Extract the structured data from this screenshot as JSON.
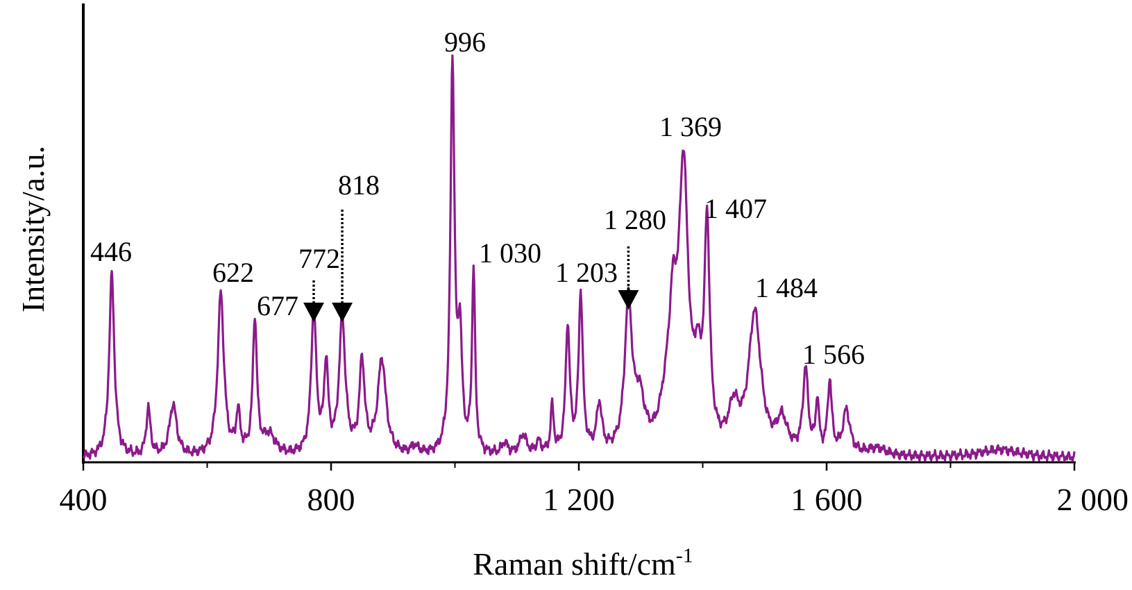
{
  "chart_data": {
    "type": "line",
    "title": "",
    "xlabel": "Raman shift/cm",
    "xlabel_superscript": "-1",
    "ylabel": "Intensity/a.u.",
    "xlim": [
      400,
      2000
    ],
    "ylim": [
      0,
      100
    ],
    "x_ticks": [
      400,
      800,
      1200,
      1600,
      2000
    ],
    "x_tick_labels": [
      "400",
      "800",
      "1 200",
      "1 600",
      "2 000"
    ],
    "y_ticks_shown": false,
    "grid": false,
    "legend": "none",
    "series_color": "#8B1A8B",
    "baseline": 0.7,
    "peaks": [
      {
        "x": 446,
        "y": 46,
        "w": 5
      },
      {
        "x": 505,
        "y": 12,
        "w": 4
      },
      {
        "x": 545,
        "y": 13,
        "w": 7
      },
      {
        "x": 622,
        "y": 41,
        "w": 6
      },
      {
        "x": 650,
        "y": 10,
        "w": 4
      },
      {
        "x": 677,
        "y": 34,
        "w": 4
      },
      {
        "x": 700,
        "y": 5,
        "w": 12
      },
      {
        "x": 772,
        "y": 36,
        "w": 5
      },
      {
        "x": 792,
        "y": 22,
        "w": 4
      },
      {
        "x": 818,
        "y": 34,
        "w": 6
      },
      {
        "x": 850,
        "y": 23,
        "w": 5
      },
      {
        "x": 882,
        "y": 24,
        "w": 8
      },
      {
        "x": 935,
        "y": 2,
        "w": 8
      },
      {
        "x": 996,
        "y": 98,
        "w": 4
      },
      {
        "x": 1008,
        "y": 28,
        "w": 4
      },
      {
        "x": 1030,
        "y": 46,
        "w": 3
      },
      {
        "x": 1080,
        "y": 3,
        "w": 6
      },
      {
        "x": 1110,
        "y": 5,
        "w": 7
      },
      {
        "x": 1135,
        "y": 3,
        "w": 5
      },
      {
        "x": 1157,
        "y": 12,
        "w": 3
      },
      {
        "x": 1182,
        "y": 32,
        "w": 4
      },
      {
        "x": 1203,
        "y": 40,
        "w": 4
      },
      {
        "x": 1233,
        "y": 12,
        "w": 5
      },
      {
        "x": 1280,
        "y": 37,
        "w": 7
      },
      {
        "x": 1298,
        "y": 12,
        "w": 10
      },
      {
        "x": 1340,
        "y": 8,
        "w": 12
      },
      {
        "x": 1352,
        "y": 28,
        "w": 8
      },
      {
        "x": 1369,
        "y": 68,
        "w": 9
      },
      {
        "x": 1392,
        "y": 16,
        "w": 8
      },
      {
        "x": 1407,
        "y": 54,
        "w": 5
      },
      {
        "x": 1450,
        "y": 10,
        "w": 10
      },
      {
        "x": 1484,
        "y": 35,
        "w": 12
      },
      {
        "x": 1528,
        "y": 8,
        "w": 10
      },
      {
        "x": 1566,
        "y": 21,
        "w": 5
      },
      {
        "x": 1585,
        "y": 13,
        "w": 3
      },
      {
        "x": 1605,
        "y": 18,
        "w": 4
      },
      {
        "x": 1632,
        "y": 11,
        "w": 7
      },
      {
        "x": 1680,
        "y": 2,
        "w": 20
      },
      {
        "x": 1880,
        "y": 2,
        "w": 40
      }
    ],
    "peak_labels": [
      {
        "x": 446,
        "text": "446"
      },
      {
        "x": 622,
        "text": "622"
      },
      {
        "x": 677,
        "text": "677"
      },
      {
        "x": 772,
        "text": "772"
      },
      {
        "x": 818,
        "text": "818"
      },
      {
        "x": 996,
        "text": "996"
      },
      {
        "x": 1030,
        "text": "1 030"
      },
      {
        "x": 1203,
        "text": "1 203"
      },
      {
        "x": 1280,
        "text": "1 280"
      },
      {
        "x": 1369,
        "text": "1 369"
      },
      {
        "x": 1407,
        "text": "1 407"
      },
      {
        "x": 1484,
        "text": "1 484"
      },
      {
        "x": 1566,
        "text": "1 566"
      }
    ]
  }
}
